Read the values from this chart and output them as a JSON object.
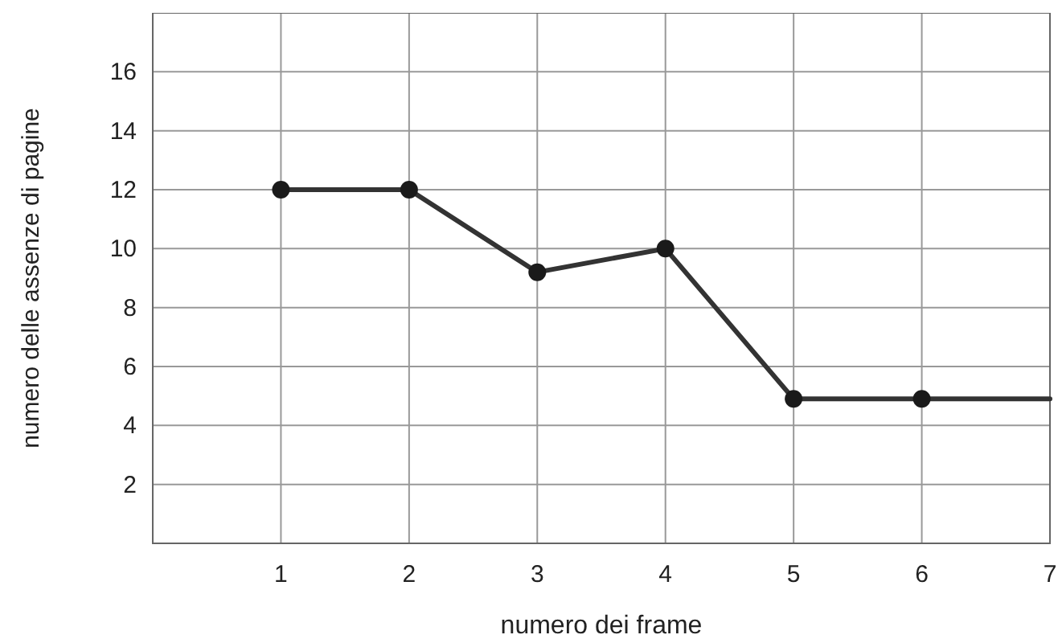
{
  "chart_data": {
    "type": "line",
    "xlabel": "numero dei frame",
    "ylabel": "numero delle assenze di pagine",
    "xlim": [
      0,
      7
    ],
    "xticks": [
      1,
      2,
      3,
      4,
      5,
      6,
      7
    ],
    "ylim": [
      0,
      18
    ],
    "yticks": [
      2,
      4,
      6,
      8,
      10,
      12,
      14,
      16
    ],
    "grid": true,
    "line_style": "solid",
    "series": [
      {
        "type": "line",
        "marker": "none",
        "color": "#333333",
        "x": [
          1,
          2,
          3,
          4,
          5,
          6,
          7
        ],
        "values": [
          12,
          12,
          9.2,
          10,
          4.9,
          4.9,
          4.9
        ]
      },
      {
        "type": "scatter",
        "marker": "circle",
        "color": "#1a1a1a",
        "x": [
          1,
          2,
          3,
          4,
          5,
          6
        ],
        "values": [
          12,
          12,
          9.2,
          10,
          4.9,
          4.9
        ]
      }
    ]
  }
}
